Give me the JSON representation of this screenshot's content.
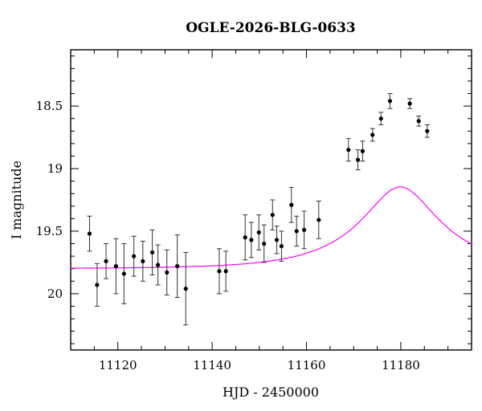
{
  "chart_data": {
    "type": "scatter",
    "title": "OGLE-2026-BLG-0633",
    "xlabel": "HJD - 2450000",
    "ylabel": "I magnitude",
    "xlim": [
      11110,
      11195
    ],
    "ylim": [
      20.45,
      18.05
    ],
    "y_inverted": true,
    "x_ticks": [
      11120,
      11140,
      11160,
      11180
    ],
    "y_ticks": [
      18.5,
      19,
      19.5,
      20
    ],
    "y_tick_labels": [
      "18.5",
      "19",
      "19.5",
      "20"
    ],
    "grid": false,
    "colors": {
      "points": "#000000",
      "model": "#ff00ff",
      "axes": "#000000"
    },
    "series": [
      {
        "kind": "points_with_errorbars",
        "points": [
          {
            "x": 11114.0,
            "y": 19.52,
            "err": 0.14
          },
          {
            "x": 11115.6,
            "y": 19.93,
            "err": 0.17
          },
          {
            "x": 11117.5,
            "y": 19.74,
            "err": 0.14
          },
          {
            "x": 11119.6,
            "y": 19.78,
            "err": 0.22
          },
          {
            "x": 11121.3,
            "y": 19.84,
            "err": 0.24
          },
          {
            "x": 11123.4,
            "y": 19.7,
            "err": 0.16
          },
          {
            "x": 11125.3,
            "y": 19.74,
            "err": 0.16
          },
          {
            "x": 11127.3,
            "y": 19.67,
            "err": 0.18
          },
          {
            "x": 11128.5,
            "y": 19.77,
            "err": 0.16
          },
          {
            "x": 11130.4,
            "y": 19.83,
            "err": 0.18
          },
          {
            "x": 11132.6,
            "y": 19.78,
            "err": 0.25
          },
          {
            "x": 11134.4,
            "y": 19.96,
            "err": 0.29
          },
          {
            "x": 11141.5,
            "y": 19.82,
            "err": 0.18
          },
          {
            "x": 11142.9,
            "y": 19.82,
            "err": 0.16
          },
          {
            "x": 11147.0,
            "y": 19.55,
            "err": 0.18
          },
          {
            "x": 11148.3,
            "y": 19.57,
            "err": 0.14
          },
          {
            "x": 11149.9,
            "y": 19.51,
            "err": 0.14
          },
          {
            "x": 11151.0,
            "y": 19.6,
            "err": 0.15
          },
          {
            "x": 11152.8,
            "y": 19.37,
            "err": 0.12
          },
          {
            "x": 11153.7,
            "y": 19.57,
            "err": 0.11
          },
          {
            "x": 11154.7,
            "y": 19.62,
            "err": 0.12
          },
          {
            "x": 11156.8,
            "y": 19.29,
            "err": 0.14
          },
          {
            "x": 11157.9,
            "y": 19.5,
            "err": 0.12
          },
          {
            "x": 11159.5,
            "y": 19.49,
            "err": 0.15
          },
          {
            "x": 11162.6,
            "y": 19.41,
            "err": 0.15
          },
          {
            "x": 11168.9,
            "y": 18.85,
            "err": 0.09
          },
          {
            "x": 11170.9,
            "y": 18.93,
            "err": 0.08
          },
          {
            "x": 11171.9,
            "y": 18.86,
            "err": 0.08
          },
          {
            "x": 11174.0,
            "y": 18.73,
            "err": 0.05
          },
          {
            "x": 11175.8,
            "y": 18.6,
            "err": 0.05
          },
          {
            "x": 11177.7,
            "y": 18.46,
            "err": 0.06
          },
          {
            "x": 11181.9,
            "y": 18.48,
            "err": 0.04
          },
          {
            "x": 11183.8,
            "y": 18.62,
            "err": 0.04
          },
          {
            "x": 11185.6,
            "y": 18.7,
            "err": 0.05
          }
        ]
      },
      {
        "kind": "model_curve",
        "model": {
          "t0": 11179.9,
          "tE": 18,
          "u0": 0.4,
          "I_source": 20.55,
          "I_baseline": 19.8
        }
      }
    ]
  }
}
